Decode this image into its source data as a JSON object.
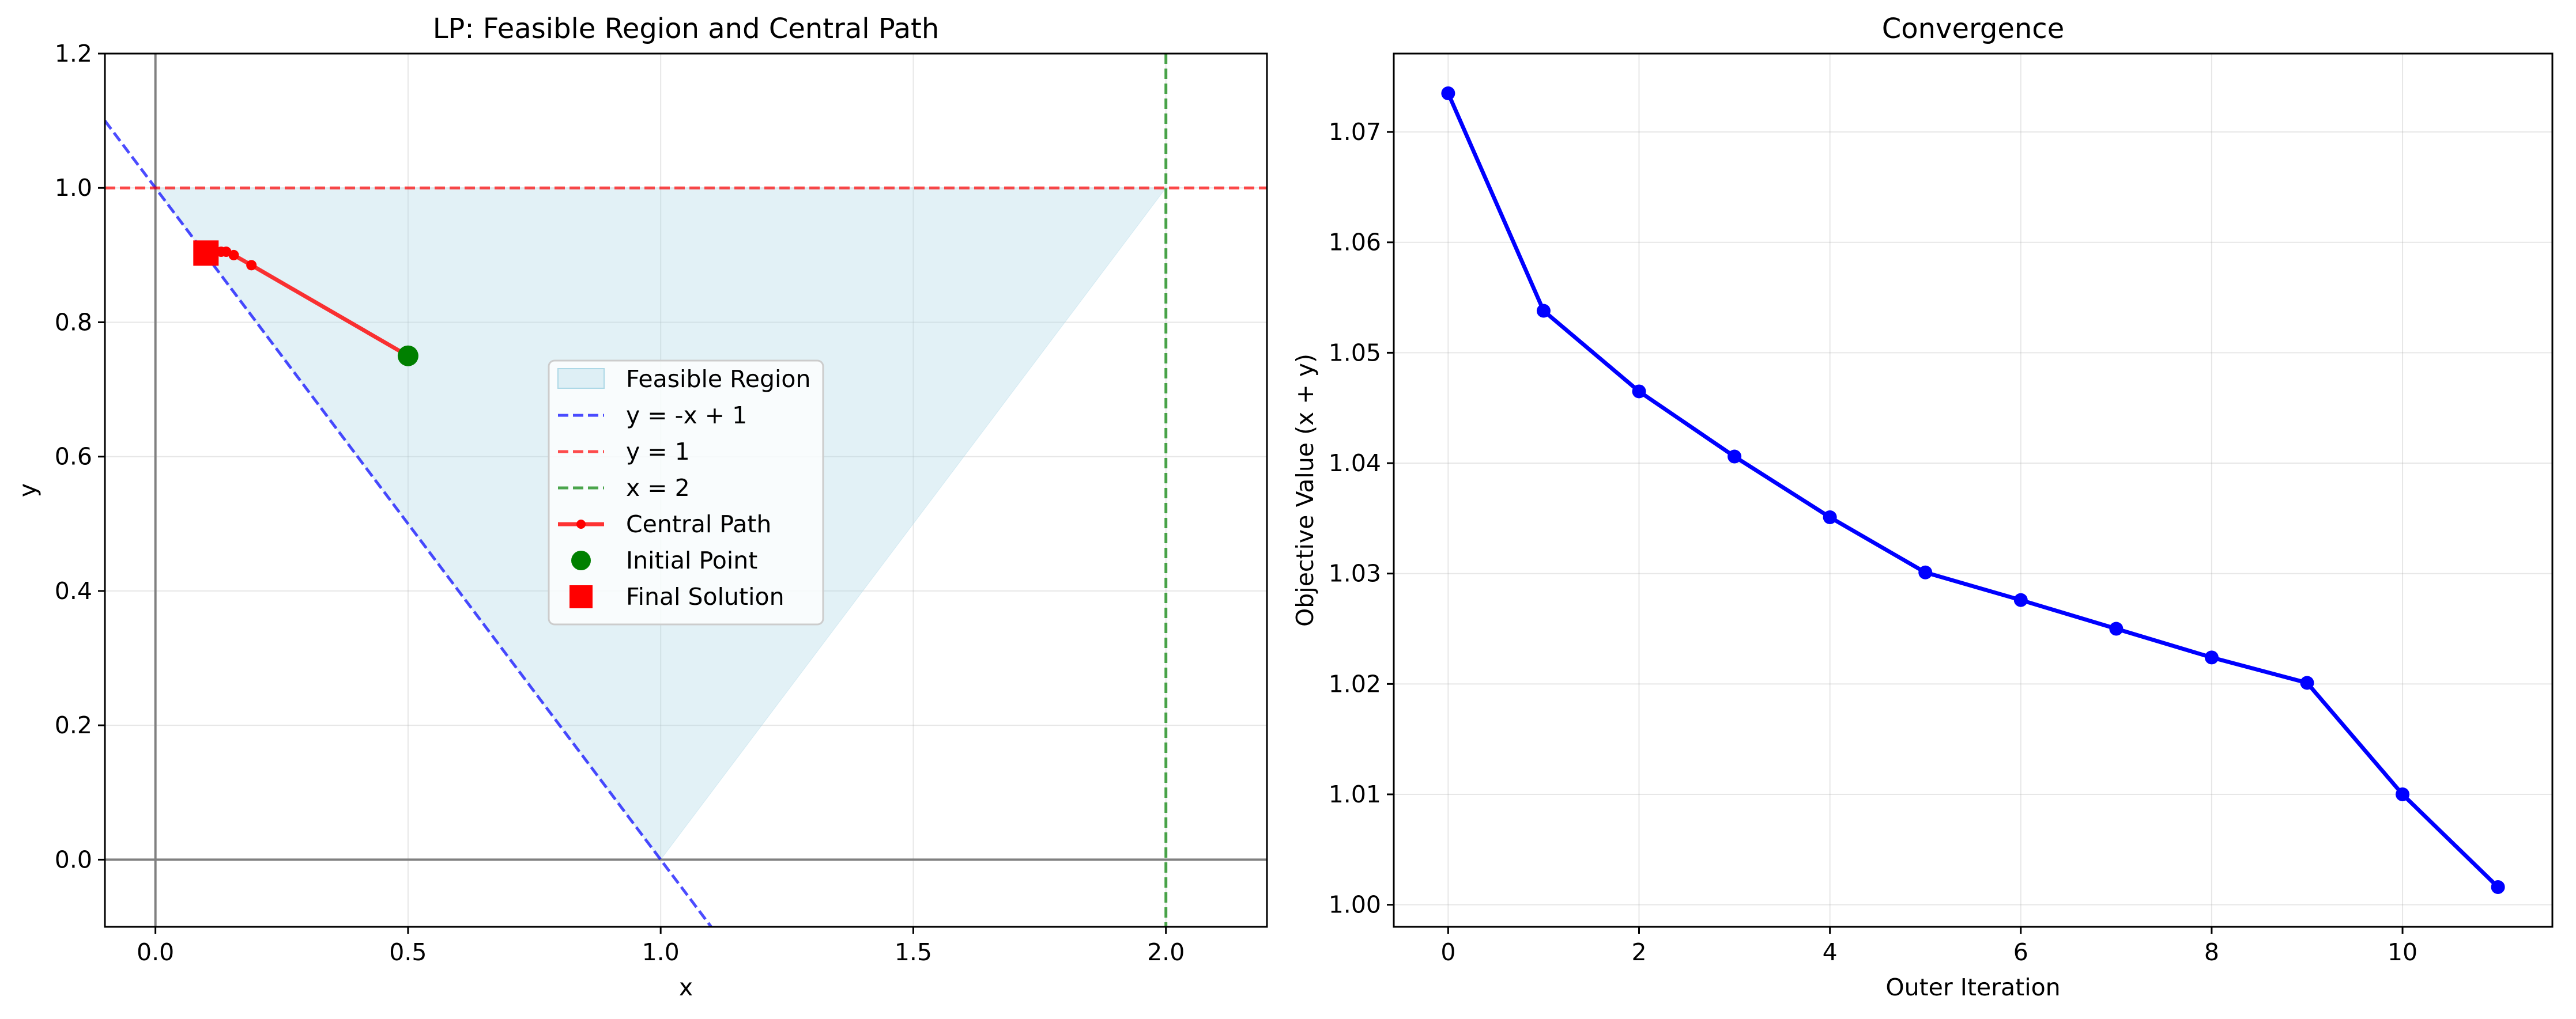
{
  "chart_data": [
    {
      "type": "line",
      "title": "LP: Feasible Region and Central Path",
      "xlabel": "x",
      "ylabel": "y",
      "xlim": [
        -0.1,
        2.2
      ],
      "ylim": [
        -0.1,
        1.2
      ],
      "xticks": [
        0.0,
        0.5,
        1.0,
        1.5,
        2.0
      ],
      "xtick_labels": [
        "0.0",
        "0.5",
        "1.0",
        "1.5",
        "2.0"
      ],
      "yticks": [
        0.0,
        0.2,
        0.4,
        0.6,
        0.8,
        1.0,
        1.2
      ],
      "ytick_labels": [
        "0.0",
        "0.2",
        "0.4",
        "0.6",
        "0.8",
        "1.0",
        "1.2"
      ],
      "grid": true,
      "legend_position": "center-right",
      "feasible_region": {
        "name": "Feasible Region",
        "color": "#add8e6",
        "vertices": [
          [
            0.0,
            1.0
          ],
          [
            1.0,
            0.0
          ],
          [
            2.0,
            1.0
          ]
        ]
      },
      "constraint_lines": [
        {
          "name": "y = -x + 1",
          "color": "#0000ff",
          "kind": "line",
          "x": [
            -0.1,
            1.1
          ],
          "y": [
            1.1,
            -0.1
          ]
        },
        {
          "name": "y = 1",
          "color": "#ff0000",
          "kind": "hline",
          "value": 1.0
        },
        {
          "name": "x = 2",
          "color": "#008000",
          "kind": "vline",
          "value": 2.0
        }
      ],
      "axis_lines": {
        "color": "#808080",
        "x0": 0.0,
        "y0": 0.0
      },
      "central_path": {
        "name": "Central Path",
        "color": "#ff0000",
        "x": [
          0.5,
          0.19,
          0.155,
          0.14,
          0.13,
          0.12,
          0.115,
          0.11,
          0.105,
          0.102,
          0.1
        ],
        "y": [
          0.75,
          0.885,
          0.9,
          0.905,
          0.905,
          0.905,
          0.905,
          0.905,
          0.905,
          0.904,
          0.903
        ]
      },
      "initial_point": {
        "name": "Initial Point",
        "color": "#008000",
        "x": 0.5,
        "y": 0.75
      },
      "final_solution": {
        "name": "Final Solution",
        "color": "#ff0000",
        "x": 0.1,
        "y": 0.903
      }
    },
    {
      "type": "line",
      "title": "Convergence",
      "xlabel": "Outer Iteration",
      "ylabel": "Objective Value (x + y)",
      "xlim": [
        -0.57,
        11.57
      ],
      "ylim": [
        0.998,
        1.0771
      ],
      "xticks": [
        0,
        2,
        4,
        6,
        8,
        10
      ],
      "xtick_labels": [
        "0",
        "2",
        "4",
        "6",
        "8",
        "10"
      ],
      "yticks": [
        1.0,
        1.01,
        1.02,
        1.03,
        1.04,
        1.05,
        1.06,
        1.07
      ],
      "ytick_labels": [
        "1.00",
        "1.01",
        "1.02",
        "1.03",
        "1.04",
        "1.05",
        "1.06",
        "1.07"
      ],
      "grid": true,
      "series": [
        {
          "color": "#0000ff",
          "x": [
            0,
            1,
            2,
            3,
            4,
            5,
            6,
            7,
            8,
            9,
            10,
            11
          ],
          "values": [
            1.0735,
            1.0538,
            1.0465,
            1.0406,
            1.0351,
            1.0301,
            1.0276,
            1.025,
            1.0224,
            1.0201,
            1.01,
            1.0016
          ]
        }
      ]
    }
  ]
}
